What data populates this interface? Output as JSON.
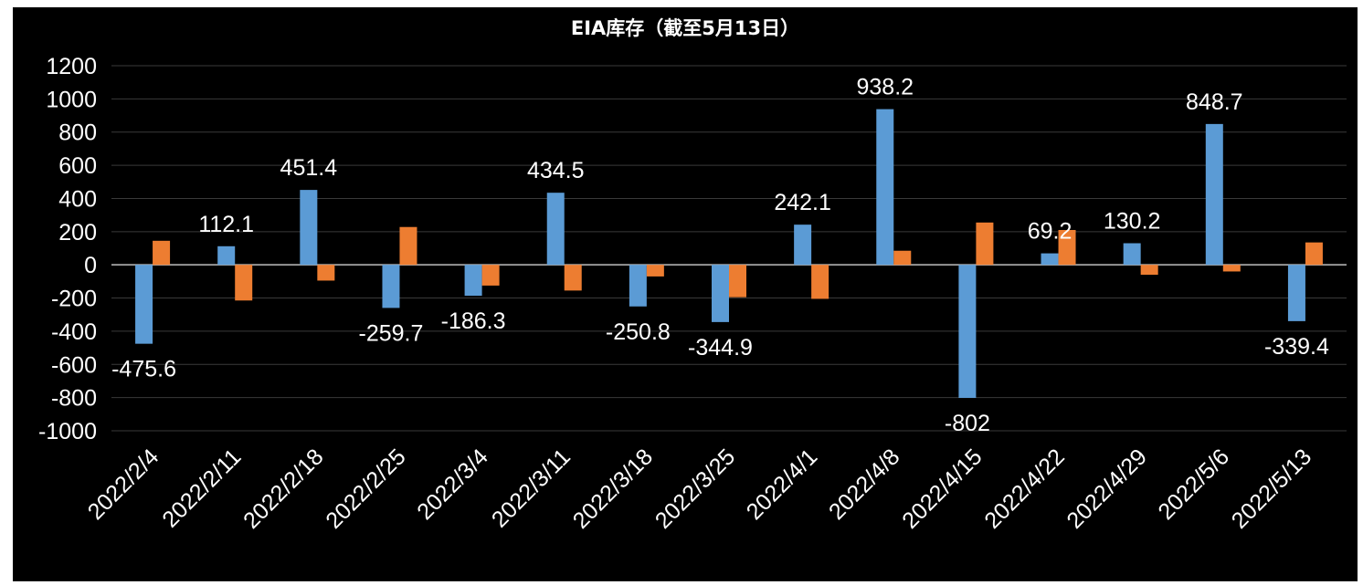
{
  "chart_data": {
    "type": "bar",
    "title": "EIA库存（截至5月13日）",
    "xlabel": "",
    "ylabel": "",
    "ylim": [
      -1000,
      1200
    ],
    "yticks": [
      1200,
      1000,
      800,
      600,
      400,
      200,
      0,
      -200,
      -400,
      -600,
      -800,
      -1000
    ],
    "grid": true,
    "legend": "none",
    "categories": [
      "2022/2/4",
      "2022/2/11",
      "2022/2/18",
      "2022/2/25",
      "2022/3/4",
      "2022/3/11",
      "2022/3/18",
      "2022/3/25",
      "2022/4/1",
      "2022/4/8",
      "2022/4/15",
      "2022/4/22",
      "2022/4/29",
      "2022/5/6",
      "2022/5/13"
    ],
    "series": [
      {
        "color": "#5b9bd5",
        "values": [
          -475.6,
          112.1,
          451.4,
          -259.7,
          -186.3,
          434.5,
          -250.8,
          -344.9,
          242.1,
          938.2,
          -802,
          69.2,
          130.2,
          848.7,
          -339.4
        ],
        "labels": [
          "-475.6",
          "112.1",
          "451.4",
          "-259.7",
          "-186.3",
          "434.5",
          "-250.8",
          "-344.9",
          "242.1",
          "938.2",
          "-802",
          "69.2",
          "130.2",
          "848.7",
          "-339.4"
        ]
      },
      {
        "color": "#ed7d31",
        "values": [
          145,
          -215,
          -95,
          228,
          -125,
          -155,
          -70,
          -195,
          -205,
          85,
          255,
          210,
          -60,
          -40,
          135
        ]
      }
    ]
  }
}
